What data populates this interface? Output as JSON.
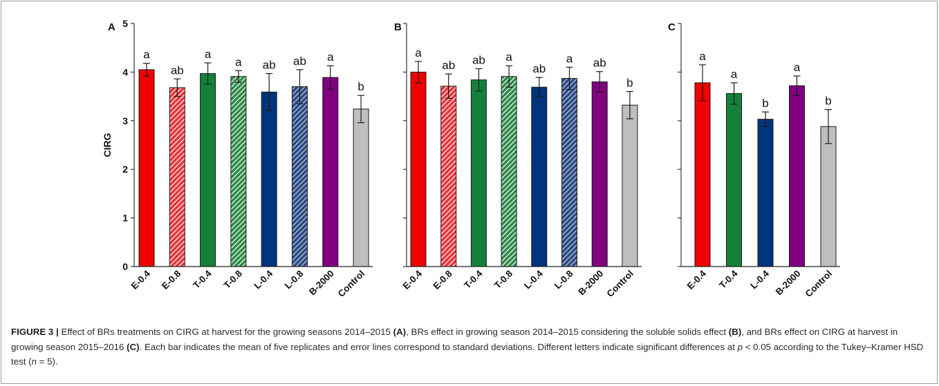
{
  "chart_data": [
    {
      "type": "bar",
      "panel_label": "A",
      "ylabel": "CIRG",
      "ylim": [
        0,
        5
      ],
      "yticks": [
        0,
        1,
        2,
        3,
        4,
        5
      ],
      "categories": [
        "E-0.4",
        "E-0.8",
        "T-0.4",
        "T-0.8",
        "L-0.4",
        "L-0.8",
        "B-2000",
        "Control"
      ],
      "values": [
        4.05,
        3.68,
        3.97,
        3.91,
        3.59,
        3.7,
        3.89,
        3.24
      ],
      "errors": [
        0.13,
        0.18,
        0.22,
        0.12,
        0.38,
        0.35,
        0.24,
        0.28
      ],
      "letters": [
        "a",
        "ab",
        "a",
        "a",
        "ab",
        "ab",
        "a",
        "b"
      ],
      "colors": [
        "#f00000",
        "#e7353d",
        "#14803a",
        "#2f8a4b",
        "#00347c",
        "#2b4a83",
        "#800080",
        "#bebebe"
      ],
      "hatched": [
        false,
        true,
        false,
        true,
        false,
        true,
        false,
        false
      ]
    },
    {
      "type": "bar",
      "panel_label": "B",
      "ylim": [
        0,
        5
      ],
      "categories": [
        "E-0.4",
        "E-0.8",
        "T-0.4",
        "T-0.8",
        "L-0.4",
        "L-0.8",
        "B-2000",
        "Control"
      ],
      "values": [
        4.0,
        3.71,
        3.84,
        3.91,
        3.69,
        3.87,
        3.8,
        3.32
      ],
      "errors": [
        0.22,
        0.25,
        0.23,
        0.22,
        0.2,
        0.23,
        0.21,
        0.28
      ],
      "letters": [
        "a",
        "ab",
        "ab",
        "a",
        "ab",
        "a",
        "ab",
        "b"
      ],
      "colors": [
        "#f00000",
        "#e7353d",
        "#14803a",
        "#2f8a4b",
        "#00347c",
        "#2b4a83",
        "#800080",
        "#bebebe"
      ],
      "hatched": [
        false,
        true,
        false,
        true,
        false,
        true,
        false,
        false
      ]
    },
    {
      "type": "bar",
      "panel_label": "C",
      "ylim": [
        0,
        5
      ],
      "categories": [
        "E-0.4",
        "T-0.4",
        "L-0.4",
        "B-2000",
        "Control"
      ],
      "values": [
        3.78,
        3.56,
        3.03,
        3.72,
        2.88
      ],
      "errors": [
        0.37,
        0.22,
        0.15,
        0.2,
        0.35
      ],
      "letters": [
        "a",
        "a",
        "b",
        "a",
        "b"
      ],
      "colors": [
        "#f00000",
        "#14803a",
        "#00347c",
        "#800080",
        "#bebebe"
      ],
      "hatched": [
        false,
        false,
        false,
        false,
        false
      ]
    }
  ],
  "caption": {
    "figure_label": "FIGURE 3 |",
    "seg1": " Effect of BRs treatments on CIRG at harvest for the growing seasons 2014–2015 ",
    "ref_a": "(A)",
    "seg2": ", BRs effect in growing season 2014–2015 considering the soluble solids effect ",
    "ref_b": "(B)",
    "seg3": ", and BRs effect on CIRG at harvest in growing season 2015–2016 ",
    "ref_c": "(C)",
    "seg4": ". Each bar indicates the mean of five replicates and error lines correspond to standard deviations. Different letters indicate significant differences at ",
    "p_symbol": "p",
    "seg5": " < 0.05 according to the Tukey–Kramer HSD test (",
    "n_symbol": "n",
    "seg6": " = 5)."
  }
}
